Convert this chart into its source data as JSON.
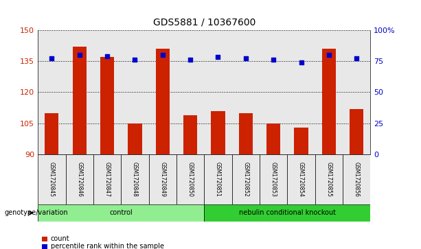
{
  "title": "GDS5881 / 10367600",
  "samples": [
    "GSM1720845",
    "GSM1720846",
    "GSM1720847",
    "GSM1720848",
    "GSM1720849",
    "GSM1720850",
    "GSM1720851",
    "GSM1720852",
    "GSM1720853",
    "GSM1720854",
    "GSM1720855",
    "GSM1720856"
  ],
  "counts": [
    110,
    142,
    137,
    105,
    141,
    109,
    111,
    110,
    105,
    103,
    141,
    112
  ],
  "percentiles": [
    77,
    80,
    79,
    76,
    80,
    76,
    78,
    77,
    76,
    74,
    80,
    77
  ],
  "y_min": 90,
  "y_max": 150,
  "y_ticks": [
    90,
    105,
    120,
    135,
    150
  ],
  "y2_ticks": [
    0,
    25,
    50,
    75,
    100
  ],
  "bar_color": "#cc2200",
  "dot_color": "#0000cc",
  "groups": [
    {
      "label": "control",
      "start": 0,
      "end": 5,
      "color": "#90ee90"
    },
    {
      "label": "nebulin conditional knockout",
      "start": 6,
      "end": 11,
      "color": "#32cd32"
    }
  ],
  "legend_bar_label": "count",
  "legend_dot_label": "percentile rank within the sample",
  "xlabel_row": "genotype/variation",
  "bar_width": 0.5,
  "grid_color": "#000000",
  "plot_bg_color": "#e8e8e8"
}
